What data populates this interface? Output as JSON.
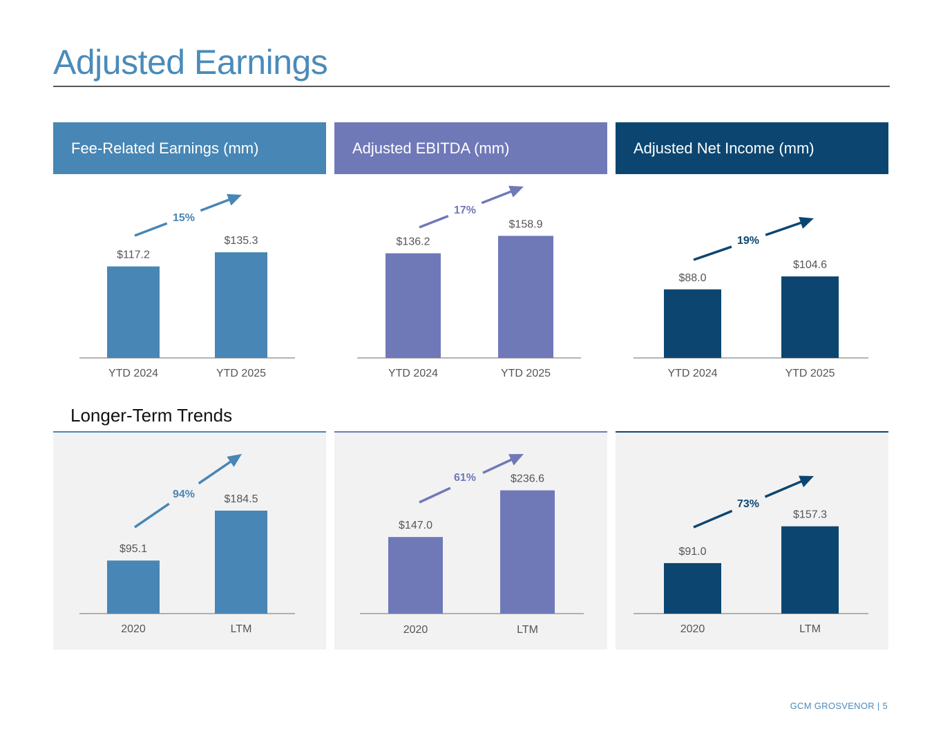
{
  "title": "Adjusted Earnings",
  "section_label": "Longer-Term Trends",
  "footer": "GCM GROSVENOR | 5",
  "colors": {
    "fre": "#4886b5",
    "ebitda": "#6f79b8",
    "ani": "#0c4670",
    "title": "#4a8bba"
  },
  "headers": [
    "Fee-Related Earnings (mm)",
    "Adjusted EBITDA (mm)",
    "Adjusted Net Income (mm)"
  ],
  "chart_data": [
    {
      "type": "bar",
      "title": "Fee-Related Earnings (mm)",
      "categories": [
        "YTD 2024",
        "YTD 2025"
      ],
      "values": [
        117.2,
        135.3
      ],
      "labels": [
        "$117.2",
        "$135.3"
      ],
      "growth": "15%"
    },
    {
      "type": "bar",
      "title": "Adjusted EBITDA (mm)",
      "categories": [
        "YTD 2024",
        "YTD 2025"
      ],
      "values": [
        136.2,
        158.9
      ],
      "labels": [
        "$136.2",
        "$158.9"
      ],
      "growth": "17%"
    },
    {
      "type": "bar",
      "title": "Adjusted Net Income (mm)",
      "categories": [
        "YTD 2024",
        "YTD 2025"
      ],
      "values": [
        88.0,
        104.6
      ],
      "labels": [
        "$88.0",
        "$104.6"
      ],
      "growth": "19%"
    },
    {
      "type": "bar",
      "title": "",
      "categories": [
        "2020",
        "LTM"
      ],
      "values": [
        95.1,
        184.5
      ],
      "labels": [
        "$95.1",
        "$184.5"
      ],
      "growth": "94%"
    },
    {
      "type": "bar",
      "title": "",
      "categories": [
        "2020",
        "LTM"
      ],
      "values": [
        147.0,
        236.6
      ],
      "labels": [
        "$147.0",
        "$236.6"
      ],
      "growth": "61%"
    },
    {
      "type": "bar",
      "title": "",
      "categories": [
        "2020",
        "LTM"
      ],
      "values": [
        91.0,
        157.3
      ],
      "labels": [
        "$91.0",
        "$157.3"
      ],
      "growth": "73%"
    }
  ]
}
